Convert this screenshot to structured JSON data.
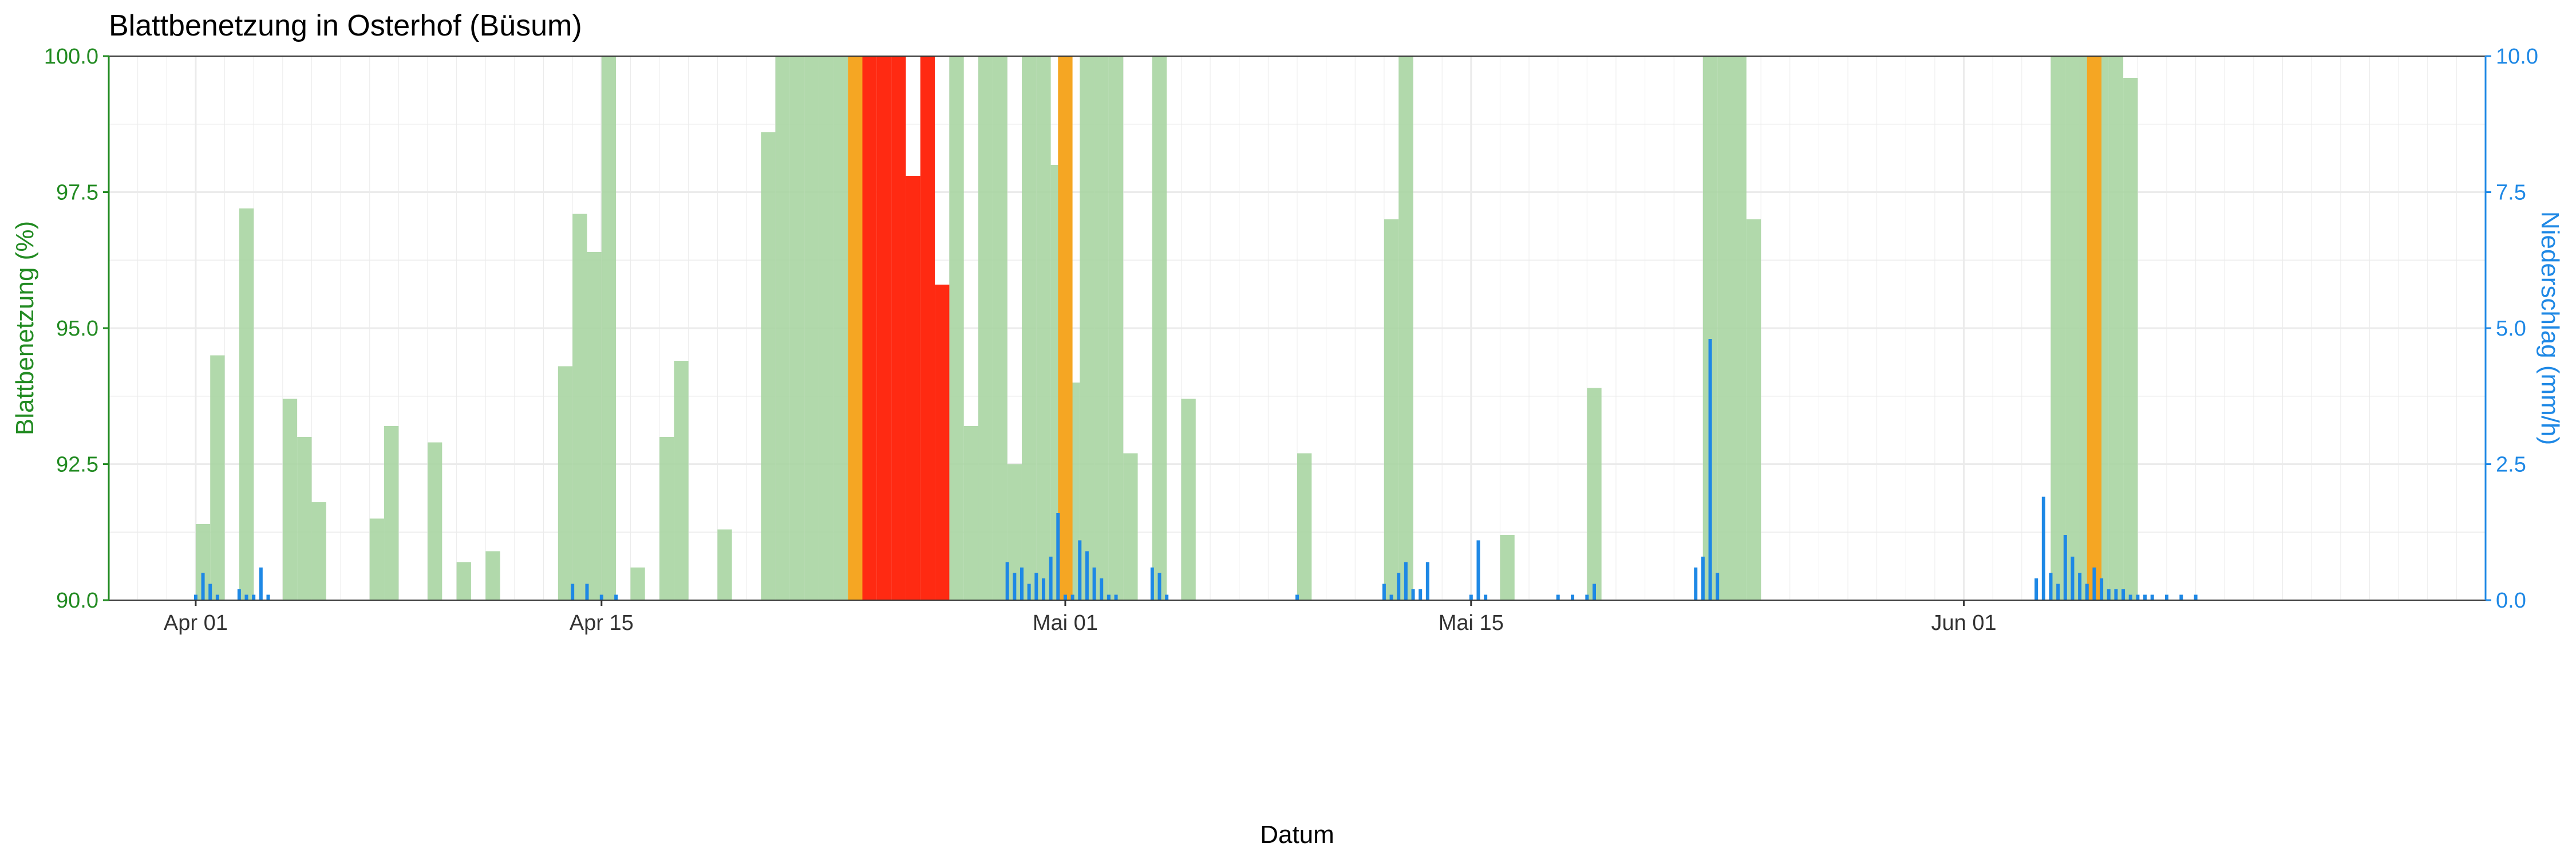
{
  "chart_data": {
    "type": "bar",
    "title": "Blattbenetzung in Osterhof (Büsum)",
    "xlabel": "Datum",
    "ylabel_left": "Blattbenetzung (%)",
    "ylabel_right": "Niederschlag (mm/h)",
    "x_range": [
      "2025-03-29",
      "2025-06-19"
    ],
    "x_ticks": [
      {
        "date": "2025-04-01",
        "label": "Apr 01"
      },
      {
        "date": "2025-04-15",
        "label": "Apr 15"
      },
      {
        "date": "2025-05-01",
        "label": "Mai 01"
      },
      {
        "date": "2025-05-15",
        "label": "Mai 15"
      },
      {
        "date": "2025-06-01",
        "label": "Jun 01"
      }
    ],
    "ylim_left": [
      90,
      100
    ],
    "y_ticks_left": [
      "90.0",
      "92.5",
      "95.0",
      "97.5",
      "100.0"
    ],
    "ylim_right": [
      0,
      10
    ],
    "y_ticks_right": [
      "0.0",
      "2.5",
      "5.0",
      "7.5",
      "10.0"
    ],
    "grid": true,
    "colors": {
      "wetness_normal": "#A8D5A2",
      "wetness_warning": "#F5A623",
      "wetness_alert": "#FF2A12",
      "precipitation": "#1E88E5",
      "left_axis": "#228B22",
      "right_axis": "#1E88E5",
      "grid": "#EBEBEB"
    },
    "series": [
      {
        "name": "Blattbenetzung",
        "kind": "bars",
        "data": [
          [
            "2025-04-01",
            91.4
          ],
          [
            "2025-04-01T12",
            94.5
          ],
          [
            "2025-04-02T12",
            97.2
          ],
          [
            "2025-04-04",
            93.7
          ],
          [
            "2025-04-04T12",
            93.0
          ],
          [
            "2025-04-05",
            91.8
          ],
          [
            "2025-04-07",
            91.5
          ],
          [
            "2025-04-07T12",
            93.2
          ],
          [
            "2025-04-09",
            92.9
          ],
          [
            "2025-04-10",
            90.7
          ],
          [
            "2025-04-11",
            90.9
          ],
          [
            "2025-04-13T12",
            94.3
          ],
          [
            "2025-04-14",
            97.1
          ],
          [
            "2025-04-14T12",
            96.4
          ],
          [
            "2025-04-15",
            100.0
          ],
          [
            "2025-04-16",
            90.6
          ],
          [
            "2025-04-17",
            93.0
          ],
          [
            "2025-04-17T12",
            94.4
          ],
          [
            "2025-04-19",
            91.3
          ],
          [
            "2025-04-20T12",
            98.6
          ],
          [
            "2025-04-21",
            100.0
          ],
          [
            "2025-04-21T12",
            100.0
          ],
          [
            "2025-04-22",
            100.0
          ],
          [
            "2025-04-22T12",
            100.0
          ],
          [
            "2025-04-23",
            100.0
          ],
          [
            "2025-04-27",
            100.0
          ],
          [
            "2025-04-27T12",
            93.2
          ],
          [
            "2025-04-28",
            100.0
          ],
          [
            "2025-04-28T12",
            100.0
          ],
          [
            "2025-04-29",
            92.5
          ],
          [
            "2025-04-29T12",
            100.0
          ],
          [
            "2025-04-30",
            100.0
          ],
          [
            "2025-04-30T12",
            98.0
          ],
          [
            "2025-05-01",
            94.0
          ],
          [
            "2025-05-01T12",
            100.0
          ],
          [
            "2025-05-02",
            100.0
          ],
          [
            "2025-05-02T12",
            100.0
          ],
          [
            "2025-05-03",
            92.7
          ],
          [
            "2025-05-04",
            100.0
          ],
          [
            "2025-05-05",
            93.7
          ],
          [
            "2025-05-09",
            92.7
          ],
          [
            "2025-05-12",
            97.0
          ],
          [
            "2025-05-12T12",
            100.0
          ],
          [
            "2025-05-16",
            91.2
          ],
          [
            "2025-05-19",
            93.9
          ],
          [
            "2025-05-23",
            100.0
          ],
          [
            "2025-05-23T12",
            100.0
          ],
          [
            "2025-05-24",
            100.0
          ],
          [
            "2025-05-24T12",
            97.0
          ],
          [
            "2025-06-04",
            100.0
          ],
          [
            "2025-06-04T12",
            100.0
          ],
          [
            "2025-06-05",
            100.0
          ],
          [
            "2025-06-05T12",
            100.0
          ],
          [
            "2025-06-06",
            100.0
          ],
          [
            "2025-06-06T12",
            99.6
          ]
        ]
      },
      {
        "name": "Blattbenetzung",
        "kind": "bars",
        "color_key": "wetness_warning",
        "data": [
          [
            "2025-04-23T12",
            100.0
          ],
          [
            "2025-04-30T18",
            100.0
          ],
          [
            "2025-06-05T06",
            100.0
          ]
        ]
      },
      {
        "name": "Blattbenetzung",
        "kind": "bars",
        "color_key": "wetness_alert",
        "data": [
          [
            "2025-04-24",
            100.0
          ],
          [
            "2025-04-24T12",
            100.0
          ],
          [
            "2025-04-25",
            100.0
          ],
          [
            "2025-04-25T12",
            97.8
          ],
          [
            "2025-04-26",
            100.0
          ],
          [
            "2025-04-26T12",
            95.8
          ]
        ]
      },
      {
        "name": "Niederschlag",
        "kind": "bars",
        "data": [
          [
            "2025-04-01",
            0.1
          ],
          [
            "2025-04-01T06",
            0.5
          ],
          [
            "2025-04-01T12",
            0.3
          ],
          [
            "2025-04-01T18",
            0.1
          ],
          [
            "2025-04-02T12",
            0.2
          ],
          [
            "2025-04-02T18",
            0.1
          ],
          [
            "2025-04-03",
            0.1
          ],
          [
            "2025-04-03T06",
            0.6
          ],
          [
            "2025-04-03T12",
            0.1
          ],
          [
            "2025-04-14",
            0.3
          ],
          [
            "2025-04-14T12",
            0.3
          ],
          [
            "2025-04-15",
            0.1
          ],
          [
            "2025-04-15T12",
            0.1
          ],
          [
            "2025-04-29",
            0.7
          ],
          [
            "2025-04-29T06",
            0.5
          ],
          [
            "2025-04-29T12",
            0.6
          ],
          [
            "2025-04-29T18",
            0.3
          ],
          [
            "2025-04-30",
            0.5
          ],
          [
            "2025-04-30T06",
            0.4
          ],
          [
            "2025-04-30T12",
            0.8
          ],
          [
            "2025-04-30T18",
            1.6
          ],
          [
            "2025-05-01",
            0.1
          ],
          [
            "2025-05-01T06",
            0.1
          ],
          [
            "2025-05-01T12",
            1.1
          ],
          [
            "2025-05-01T18",
            0.9
          ],
          [
            "2025-05-02",
            0.6
          ],
          [
            "2025-05-02T06",
            0.4
          ],
          [
            "2025-05-02T12",
            0.1
          ],
          [
            "2025-05-02T18",
            0.1
          ],
          [
            "2025-05-04",
            0.6
          ],
          [
            "2025-05-04T06",
            0.5
          ],
          [
            "2025-05-04T12",
            0.1
          ],
          [
            "2025-05-09",
            0.1
          ],
          [
            "2025-05-12",
            0.3
          ],
          [
            "2025-05-12T06",
            0.1
          ],
          [
            "2025-05-12T12",
            0.5
          ],
          [
            "2025-05-12T18",
            0.7
          ],
          [
            "2025-05-13",
            0.2
          ],
          [
            "2025-05-13T06",
            0.2
          ],
          [
            "2025-05-13T12",
            0.7
          ],
          [
            "2025-05-15",
            0.1
          ],
          [
            "2025-05-15T06",
            1.1
          ],
          [
            "2025-05-15T12",
            0.1
          ],
          [
            "2025-05-18",
            0.1
          ],
          [
            "2025-05-18T12",
            0.1
          ],
          [
            "2025-05-19",
            0.1
          ],
          [
            "2025-05-19T06",
            0.3
          ],
          [
            "2025-05-22T18",
            0.6
          ],
          [
            "2025-05-23",
            0.8
          ],
          [
            "2025-05-23T06",
            4.8
          ],
          [
            "2025-05-23T12",
            0.5
          ],
          [
            "2025-06-03T12",
            0.4
          ],
          [
            "2025-06-03T18",
            1.9
          ],
          [
            "2025-06-04",
            0.5
          ],
          [
            "2025-06-04T06",
            0.3
          ],
          [
            "2025-06-04T12",
            1.2
          ],
          [
            "2025-06-04T18",
            0.8
          ],
          [
            "2025-06-05",
            0.5
          ],
          [
            "2025-06-05T06",
            0.3
          ],
          [
            "2025-06-05T12",
            0.6
          ],
          [
            "2025-06-05T18",
            0.4
          ],
          [
            "2025-06-06",
            0.2
          ],
          [
            "2025-06-06T06",
            0.2
          ],
          [
            "2025-06-06T12",
            0.2
          ],
          [
            "2025-06-06T18",
            0.1
          ],
          [
            "2025-06-07",
            0.1
          ],
          [
            "2025-06-07T06",
            0.1
          ],
          [
            "2025-06-07T12",
            0.1
          ],
          [
            "2025-06-08",
            0.1
          ],
          [
            "2025-06-08T12",
            0.1
          ],
          [
            "2025-06-09",
            0.1
          ]
        ]
      }
    ]
  }
}
